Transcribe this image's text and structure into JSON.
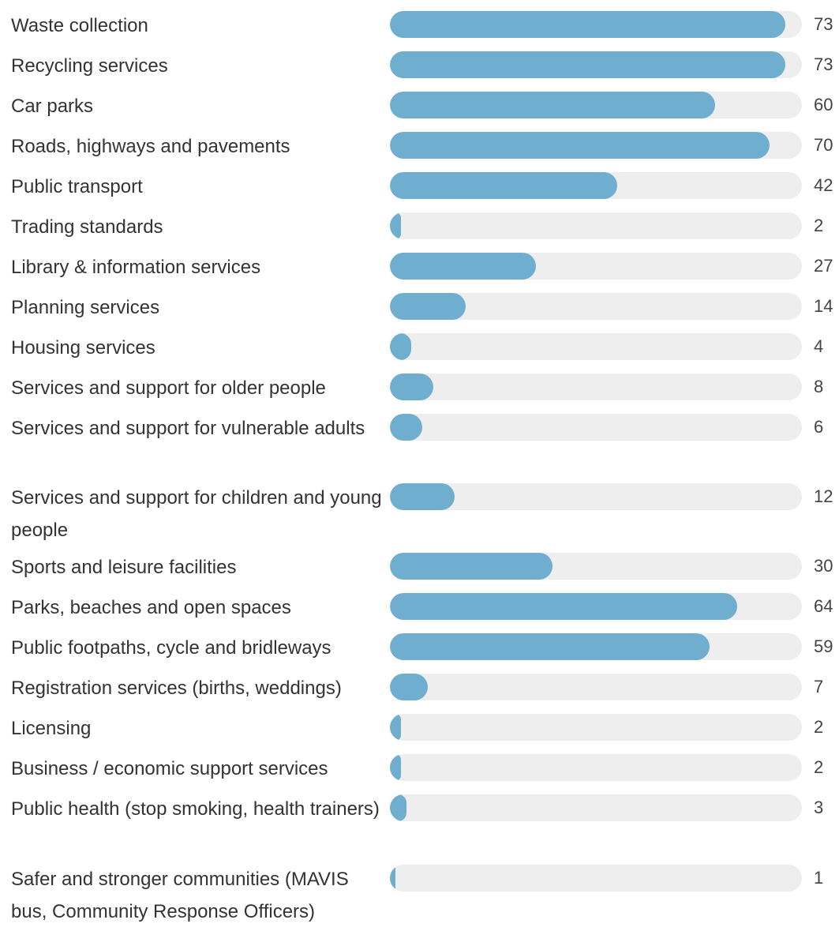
{
  "chart_data": {
    "type": "bar",
    "orientation": "horizontal",
    "bar_color": "#70aecf",
    "track_color": "#eeeeee",
    "xlim": [
      0,
      76
    ],
    "categories": [
      "Waste collection",
      "Recycling services",
      "Car parks",
      "Roads, highways and pavements",
      "Public transport",
      "Trading standards",
      "Library & information services",
      "Planning services",
      "Housing services",
      "Services and support for older people",
      "Services and support for vulnerable adults",
      "Services and support for children and young people",
      "Sports and leisure facilities",
      "Parks, beaches and open spaces",
      "Public footpaths, cycle and bridleways",
      "Registration services (births, weddings)",
      "Licensing",
      "Business / economic support services",
      "Public health (stop smoking, health trainers)",
      "Safer and stronger communities (MAVIS bus, Community Response Officers)"
    ],
    "values": [
      73,
      73,
      60,
      70,
      42,
      2,
      27,
      14,
      4,
      8,
      6,
      12,
      30,
      64,
      59,
      7,
      2,
      2,
      3,
      1
    ]
  }
}
